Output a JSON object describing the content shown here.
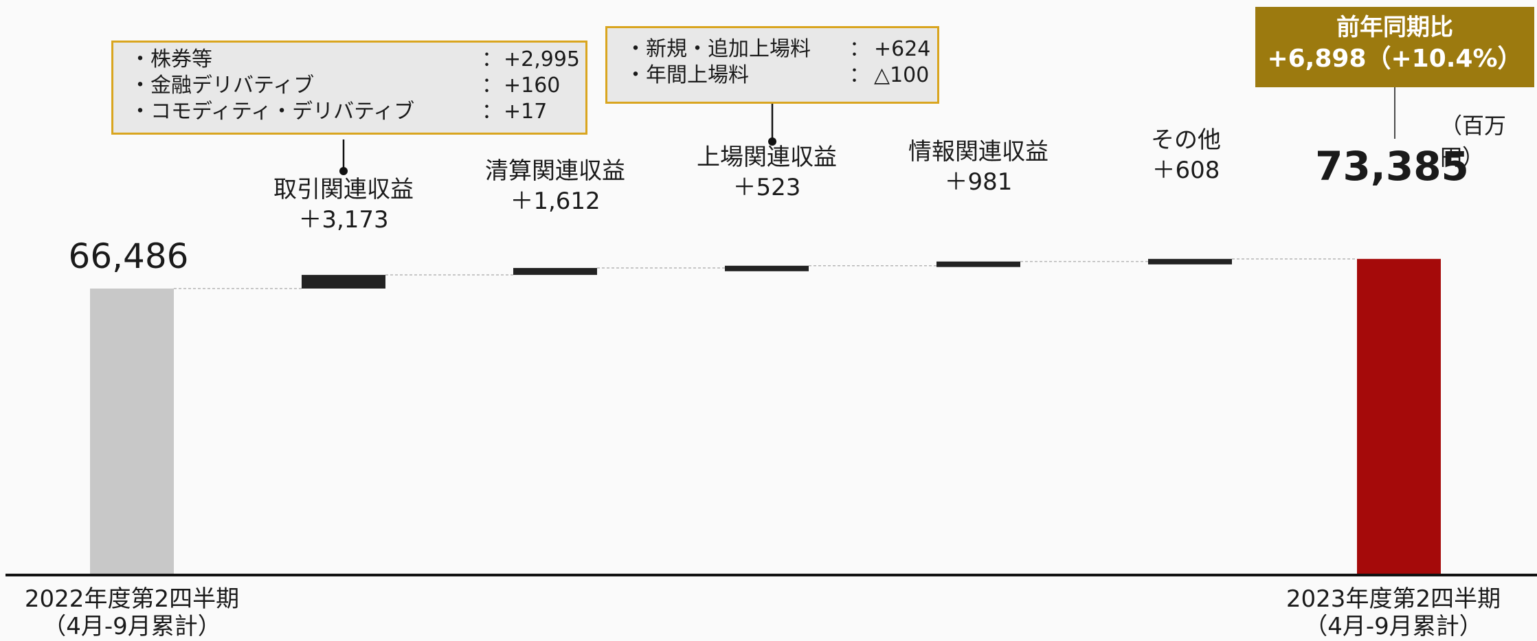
{
  "unit": "（百万円）",
  "yoy": {
    "title": "前年同期比",
    "value": "+6,898（+10.4%）"
  },
  "chart_data": {
    "type": "waterfall",
    "start": {
      "label_line1": "2022年度第2四半期",
      "label_line2": "（4月-9月累計）",
      "value": 66486,
      "display": "66,486",
      "color": "#c8c8c8"
    },
    "steps": [
      {
        "name": "取引関連収益",
        "delta": 3173,
        "display": "＋3,173"
      },
      {
        "name": "清算関連収益",
        "delta": 1612,
        "display": "＋1,612"
      },
      {
        "name": "上場関連収益",
        "delta": 523,
        "display": "＋523"
      },
      {
        "name": "情報関連収益",
        "delta": 981,
        "display": "＋981"
      },
      {
        "name": "その他",
        "delta": 608,
        "display": "＋608"
      }
    ],
    "end": {
      "label_line1": "2023年度第2四半期",
      "label_line2": "（4月-9月累計）",
      "value": 73385,
      "display": "73,385",
      "color": "#a50a0a"
    },
    "step_color": "#222222"
  },
  "notes": {
    "trading": [
      {
        "label": "・株券等",
        "value": "+2,995"
      },
      {
        "label": "・金融デリバティブ",
        "value": "+160"
      },
      {
        "label": "・コモディティ・デリバティブ",
        "value": "+17"
      }
    ],
    "listing": [
      {
        "label": "・新規・追加上場料",
        "value": "+624"
      },
      {
        "label": "・年間上場料",
        "value": "△100"
      }
    ],
    "colon": "："
  },
  "colors": {
    "note_border": "#d9a51f",
    "note_bg": "#e8e8e8",
    "yoy_bg": "#9c7a0f"
  }
}
